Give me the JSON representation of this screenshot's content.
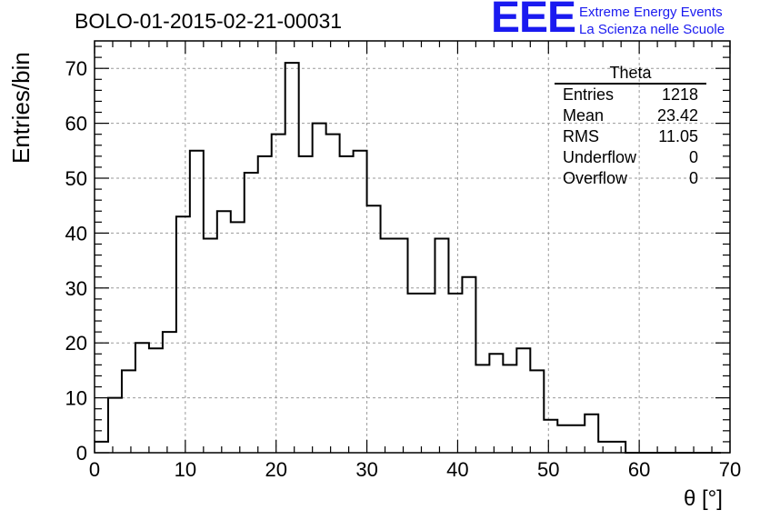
{
  "title": "BOLO-01-2015-02-21-00031",
  "logo": {
    "mark": "EEE",
    "line1": "Extreme Energy Events",
    "line2": "La Scienza nelle Scuole",
    "color": "#1a1af0"
  },
  "stats": {
    "name": "Theta",
    "rows": [
      {
        "label": "Entries",
        "value": "1218"
      },
      {
        "label": "Mean",
        "value": "23.42"
      },
      {
        "label": "RMS",
        "value": "11.05"
      },
      {
        "label": "Underflow",
        "value": "0"
      },
      {
        "label": "Overflow",
        "value": "0"
      }
    ]
  },
  "chart_data": {
    "type": "histogram",
    "xlabel": "θ [°]",
    "ylabel": "Entries/bin",
    "xlim": [
      0,
      70
    ],
    "ylim": [
      0,
      75
    ],
    "xticks": [
      0,
      10,
      20,
      30,
      40,
      50,
      60,
      70
    ],
    "yticks": [
      0,
      10,
      20,
      30,
      40,
      50,
      60,
      70
    ],
    "grid": true,
    "bin_width": 1.5,
    "bin_start": 0,
    "values": [
      2,
      10,
      15,
      20,
      19,
      22,
      43,
      55,
      39,
      44,
      42,
      51,
      54,
      58,
      71,
      54,
      60,
      58,
      54,
      55,
      45,
      39,
      39,
      29,
      29,
      39,
      29,
      32,
      16,
      18,
      16,
      19,
      15,
      6,
      5,
      5,
      7,
      2,
      2,
      0,
      0,
      0,
      0,
      0,
      0,
      0
    ]
  }
}
